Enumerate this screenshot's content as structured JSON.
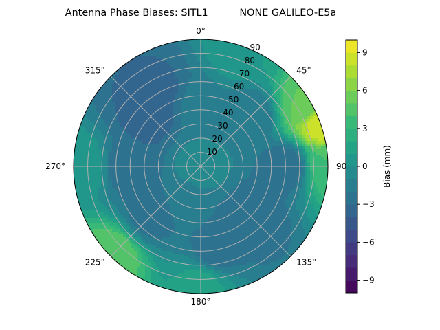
{
  "chart_data": {
    "type": "heatmap",
    "projection": "polar",
    "title": "Antenna Phase Biases: SITL1          NONE GALILEO-E5a",
    "angular_axis": {
      "zero_location": "north",
      "direction": "clockwise",
      "ticks": [
        0,
        45,
        90,
        135,
        180,
        225,
        270,
        315
      ],
      "tick_labels": [
        "0°",
        "45°",
        "90",
        "135°",
        "180°",
        "225°",
        "270°",
        "315°"
      ]
    },
    "radial_axis": {
      "range": [
        0,
        90
      ],
      "ticks": [
        10,
        20,
        30,
        40,
        50,
        60,
        70,
        80,
        90
      ],
      "tick_labels": [
        "10",
        "20",
        "30",
        "40",
        "50",
        "60",
        "70",
        "80",
        "90"
      ]
    },
    "grid": true,
    "colorbar": {
      "label": "Bias (mm)",
      "range": [
        -10,
        10
      ],
      "levels": 20,
      "colormap": "viridis",
      "ticks": [
        -9,
        -6,
        -3,
        0,
        3,
        6,
        9
      ],
      "tick_labels": [
        "−9",
        "−6",
        "−3",
        "0",
        "3",
        "6",
        "9"
      ],
      "placement": "right"
    },
    "field_samples": {
      "note_units": "bias in mm at (azimuth deg, zenith deg)",
      "points": [
        {
          "az": 0,
          "zen": 0,
          "bias": -0.5
        },
        {
          "az": 0,
          "zen": 40,
          "bias": -1.2
        },
        {
          "az": 315,
          "zen": 50,
          "bias": -3.5
        },
        {
          "az": 330,
          "zen": 60,
          "bias": -3.3
        },
        {
          "az": 270,
          "zen": 50,
          "bias": -2.8
        },
        {
          "az": 270,
          "zen": 85,
          "bias": 1.0
        },
        {
          "az": 45,
          "zen": 50,
          "bias": -2.0
        },
        {
          "az": 60,
          "zen": 85,
          "bias": 5.0
        },
        {
          "az": 70,
          "zen": 90,
          "bias": 9.0
        },
        {
          "az": 90,
          "zen": 60,
          "bias": -2.8
        },
        {
          "az": 90,
          "zen": 90,
          "bias": 4.0
        },
        {
          "az": 135,
          "zen": 50,
          "bias": -3.0
        },
        {
          "az": 170,
          "zen": 60,
          "bias": -2.5
        },
        {
          "az": 180,
          "zen": 85,
          "bias": 1.5
        },
        {
          "az": 225,
          "zen": 50,
          "bias": -2.5
        },
        {
          "az": 225,
          "zen": 88,
          "bias": 5.0
        },
        {
          "az": 200,
          "zen": 30,
          "bias": -1.8
        },
        {
          "az": 20,
          "zen": 88,
          "bias": 1.0
        }
      ]
    }
  }
}
